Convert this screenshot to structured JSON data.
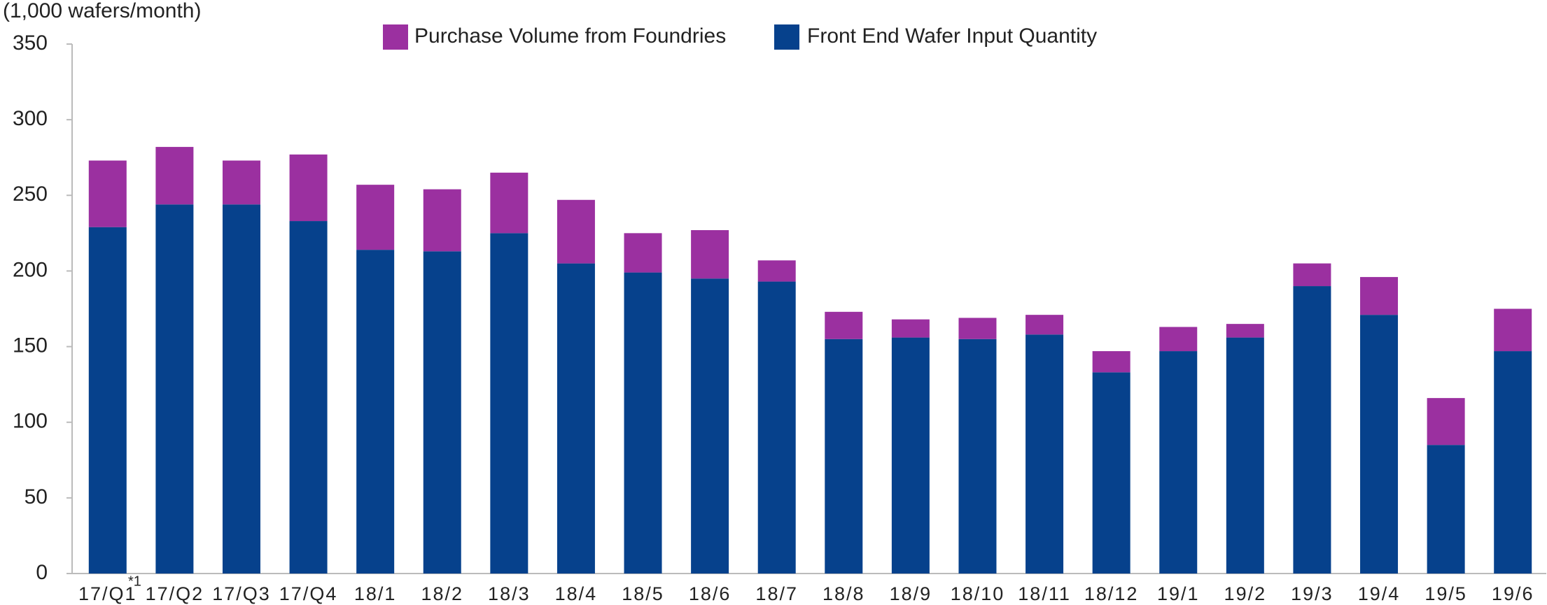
{
  "chart_data": {
    "type": "stacked_bar",
    "y_axis_label": "(1,000 wafers/month)",
    "annotation": "*1",
    "categories": [
      "17/Q1",
      "17/Q2",
      "17/Q3",
      "17/Q4",
      "18/1",
      "18/2",
      "18/3",
      "18/4",
      "18/5",
      "18/6",
      "18/7",
      "18/8",
      "18/9",
      "18/10",
      "18/11",
      "18/12",
      "19/1",
      "19/2",
      "19/3",
      "19/4",
      "19/5",
      "19/6"
    ],
    "series": [
      {
        "name": "Front End Wafer Input Quantity",
        "color": "#06418c",
        "values": [
          229,
          244,
          244,
          233,
          214,
          213,
          225,
          205,
          199,
          195,
          193,
          155,
          156,
          155,
          158,
          133,
          147,
          156,
          190,
          171,
          85,
          147
        ]
      },
      {
        "name": "Purchase Volume from Foundries",
        "color": "#9b30a0",
        "values": [
          44,
          38,
          29,
          44,
          43,
          41,
          40,
          42,
          26,
          32,
          14,
          18,
          12,
          14,
          13,
          14,
          16,
          9,
          15,
          25,
          31,
          28
        ]
      }
    ],
    "ylim": [
      0,
      350
    ],
    "yticks": [
      0,
      50,
      100,
      150,
      200,
      250,
      300,
      350
    ],
    "grid": false
  }
}
